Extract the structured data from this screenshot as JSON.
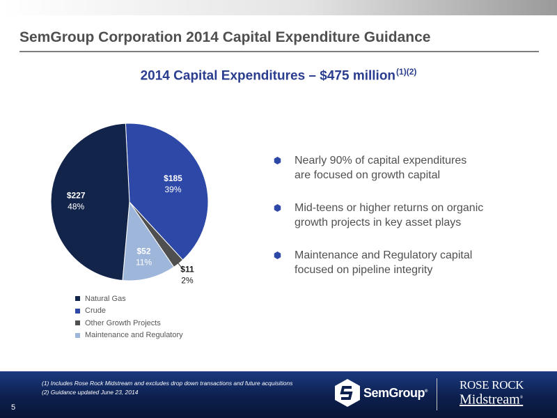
{
  "slide": {
    "title": "SemGroup Corporation 2014 Capital Expenditure Guidance",
    "page_number": "5"
  },
  "chart_data": {
    "type": "pie",
    "title": "2014 Capital Expenditures – $475 million",
    "title_superscript": "(1)(2)",
    "units": "$ millions",
    "slices": [
      {
        "name": "Natural Gas",
        "value": 227,
        "value_label": "$227",
        "percent_label": "48%",
        "color": "#13244a"
      },
      {
        "name": "Crude",
        "value": 185,
        "value_label": "$185",
        "percent_label": "39%",
        "color": "#2e48a8"
      },
      {
        "name": "Other Growth Projects",
        "value": 11,
        "value_label": "$11",
        "percent_label": "2%",
        "color": "#4f4f4f"
      },
      {
        "name": "Maintenance and Regulatory",
        "value": 52,
        "value_label": "$52",
        "percent_label": "11%",
        "color": "#9fb6db"
      }
    ],
    "legend_position": "bottom"
  },
  "bullets": [
    {
      "line1": "Nearly 90% of capital expenditures",
      "line2": "are focused on growth capital"
    },
    {
      "line1": "Mid-teens or higher returns on organic",
      "line2": "growth projects in key asset plays"
    },
    {
      "line1": "Maintenance and Regulatory capital",
      "line2": "focused on pipeline integrity"
    }
  ],
  "footnotes": [
    "(1) Includes Rose Rock Midstream and excludes drop down transactions and future acquisitions",
    "(2) Guidance updated June 23, 2014"
  ],
  "logos": {
    "semgroup": "SemGroup",
    "semgroup_mark": "®",
    "rose_rock_line1": "ROSE ROCK",
    "rose_rock_line2": "Midstream",
    "rose_rock_mark": "®"
  },
  "colors": {
    "title": "#4f4f4f",
    "chart_title": "#2a3d8f",
    "bullet_icon": "#2e48a8",
    "footer": "#0c1f4d"
  }
}
